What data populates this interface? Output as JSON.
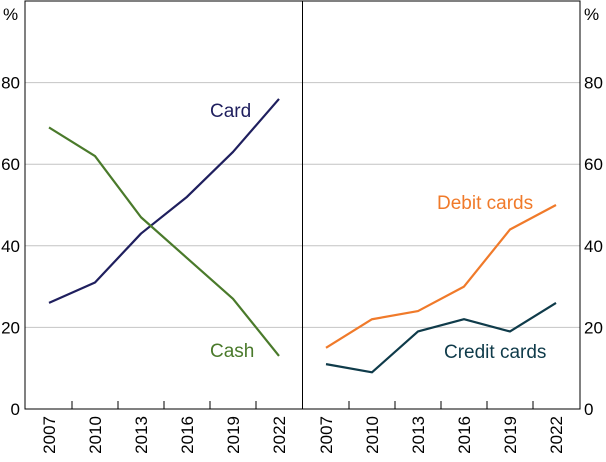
{
  "chart_data": [
    {
      "type": "line",
      "panel": "left",
      "x": [
        "2007",
        "2010",
        "2013",
        "2016",
        "2019",
        "2022"
      ],
      "ylim": [
        0,
        100
      ],
      "yticks": [
        0,
        20,
        40,
        60,
        80
      ],
      "yunit": "%",
      "grid": true,
      "series": [
        {
          "name": "Card",
          "color": "#1f1f5e",
          "values": [
            26,
            31,
            43,
            52,
            63,
            76
          ]
        },
        {
          "name": "Cash",
          "color": "#4a7a2b",
          "values": [
            69,
            62,
            47,
            37,
            27,
            13
          ]
        }
      ]
    },
    {
      "type": "line",
      "panel": "right",
      "x": [
        "2007",
        "2010",
        "2013",
        "2016",
        "2019",
        "2022"
      ],
      "ylim": [
        0,
        100
      ],
      "yticks": [
        0,
        20,
        40,
        60,
        80
      ],
      "yunit": "%",
      "grid": true,
      "series": [
        {
          "name": "Debit cards",
          "color": "#f07a2a",
          "values": [
            15,
            22,
            24,
            30,
            44,
            50
          ]
        },
        {
          "name": "Credit cards",
          "color": "#0f3b4a",
          "values": [
            11,
            9,
            19,
            22,
            19,
            26
          ]
        }
      ]
    }
  ]
}
